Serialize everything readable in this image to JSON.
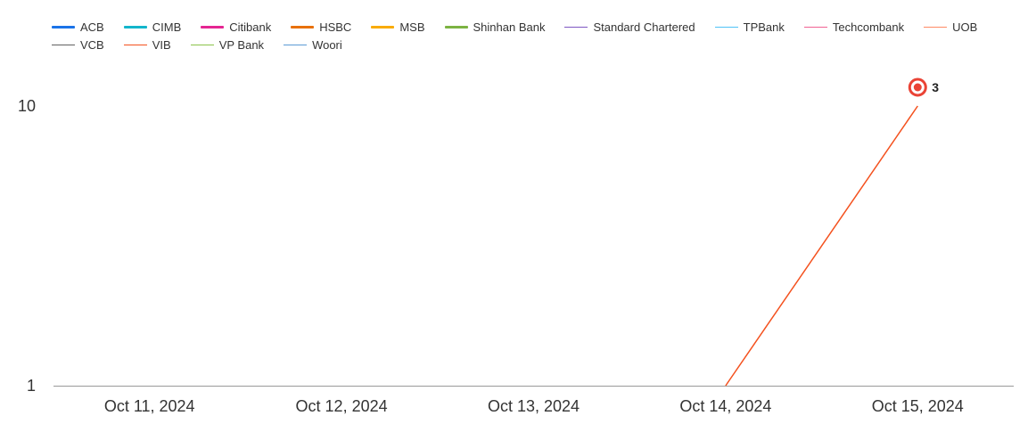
{
  "chart_data": {
    "type": "line",
    "title": "",
    "xlabel": "",
    "ylabel": "",
    "yscale": "log",
    "ylim": [
      1,
      10
    ],
    "y_ticks": [
      1,
      10
    ],
    "y_tick_labels": [
      "1",
      "10"
    ],
    "categories": [
      "Oct 11, 2024",
      "Oct 12, 2024",
      "Oct 13, 2024",
      "Oct 14, 2024",
      "Oct 15, 2024"
    ],
    "legend_position": "top",
    "series": [
      {
        "name": "ACB",
        "color": "#1a73e8",
        "style": "thick",
        "values": [
          null,
          null,
          null,
          null,
          null
        ]
      },
      {
        "name": "CIMB",
        "color": "#12b5cb",
        "style": "thick",
        "values": [
          null,
          null,
          null,
          null,
          null
        ]
      },
      {
        "name": "Citibank",
        "color": "#e52592",
        "style": "thick",
        "values": [
          null,
          null,
          null,
          null,
          null
        ]
      },
      {
        "name": "HSBC",
        "color": "#e8710a",
        "style": "thick",
        "values": [
          null,
          null,
          null,
          null,
          null
        ]
      },
      {
        "name": "MSB",
        "color": "#f9ab00",
        "style": "thick",
        "values": [
          null,
          null,
          null,
          null,
          null
        ]
      },
      {
        "name": "Shinhan Bank",
        "color": "#7cb342",
        "style": "thick",
        "values": [
          null,
          null,
          null,
          null,
          null
        ]
      },
      {
        "name": "Standard Chartered",
        "color": "#7e57c2",
        "style": "thin",
        "values": [
          null,
          null,
          null,
          null,
          null
        ]
      },
      {
        "name": "TPBank",
        "color": "#4fc3f7",
        "style": "thin",
        "values": [
          null,
          null,
          null,
          null,
          null
        ]
      },
      {
        "name": "Techcombank",
        "color": "#f06292",
        "style": "thin",
        "values": [
          null,
          null,
          null,
          null,
          null
        ]
      },
      {
        "name": "UOB",
        "color": "#ff8a65",
        "style": "thin",
        "values": [
          null,
          null,
          null,
          null,
          null
        ]
      },
      {
        "name": "VCB",
        "color": "#616161",
        "style": "thin",
        "values": [
          null,
          null,
          null,
          null,
          null
        ]
      },
      {
        "name": "VIB",
        "color": "#f4511e",
        "style": "thin",
        "values": [
          null,
          null,
          null,
          1,
          10
        ]
      },
      {
        "name": "VP Bank",
        "color": "#8bc34a",
        "style": "thin",
        "values": [
          null,
          null,
          null,
          null,
          null
        ]
      },
      {
        "name": "Woori",
        "color": "#5c9bd5",
        "style": "thin",
        "values": [
          null,
          null,
          null,
          null,
          null
        ]
      }
    ],
    "highlight": {
      "series": "VIB",
      "category": "Oct 15, 2024",
      "label": "3",
      "color": "#ea4335"
    }
  }
}
